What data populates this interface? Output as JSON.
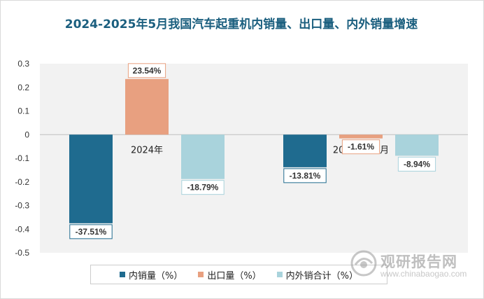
{
  "chart_data": {
    "type": "bar",
    "title": "2024-2025年5月我国汽车起重机内销量、出口量、内外销量增速",
    "categories": [
      "2024年",
      "2025年1-5月"
    ],
    "series": [
      {
        "name": "内销量（%）",
        "values": [
          -0.3751,
          -0.1381
        ],
        "labels": [
          "-37.51%",
          "-13.81%"
        ],
        "color": "#1f6b8f"
      },
      {
        "name": "出口量（%）",
        "values": [
          0.2354,
          -0.0161
        ],
        "labels": [
          "23.54%",
          "-1.61%"
        ],
        "color": "#e8a080"
      },
      {
        "name": "内外销合计（%）",
        "values": [
          -0.1879,
          -0.0894
        ],
        "labels": [
          "-18.79%",
          "-8.94%"
        ],
        "color": "#a9d3dc"
      }
    ],
    "yticks": [
      "0.3",
      "0.2",
      "0.1",
      "0",
      "-0.1",
      "-0.2",
      "-0.3",
      "-0.4",
      "-0.5"
    ],
    "ylim": [
      -0.5,
      0.3
    ],
    "grid": false,
    "legend_position": "bottom"
  },
  "watermark": {
    "main": "观研报告网",
    "sub": "www.chinabaogao.com"
  }
}
